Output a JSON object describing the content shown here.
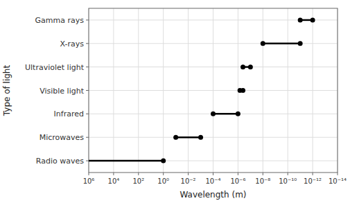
{
  "chart_data": {
    "type": "range",
    "xlabel": "Wavelength (m)",
    "ylabel": "Type of light",
    "log": "x",
    "grid": true,
    "color": "#000000",
    "categories": [
      "Gamma rays",
      "X-rays",
      "Ultraviolet light",
      "Visible light",
      "Infrared",
      "Microwaves",
      "Radio waves"
    ],
    "starts": [
      1e-11,
      1e-08,
      4e-07,
      7e-07,
      0.0001,
      0.1,
      1.0
    ],
    "ends": [
      1e-12,
      1e-11,
      1e-07,
      4e-07,
      1e-06,
      0.001,
      null
    ],
    "xlim": [
      1000000.0,
      1e-14
    ],
    "xticks": [
      {
        "value": 1000000.0,
        "label": "10⁶"
      },
      {
        "value": 10000.0,
        "label": "10⁴"
      },
      {
        "value": 100.0,
        "label": "10²"
      },
      {
        "value": 1.0,
        "label": "10⁰"
      },
      {
        "value": 0.01,
        "label": "10⁻²"
      },
      {
        "value": 0.0001,
        "label": "10⁻⁴"
      },
      {
        "value": 1e-06,
        "label": "10⁻⁶"
      },
      {
        "value": 1e-08,
        "label": "10⁻⁸"
      },
      {
        "value": 1e-10,
        "label": "10⁻¹⁰"
      },
      {
        "value": 1e-12,
        "label": "10⁻¹²"
      },
      {
        "value": 1e-14,
        "label": "10⁻¹⁴"
      }
    ]
  }
}
